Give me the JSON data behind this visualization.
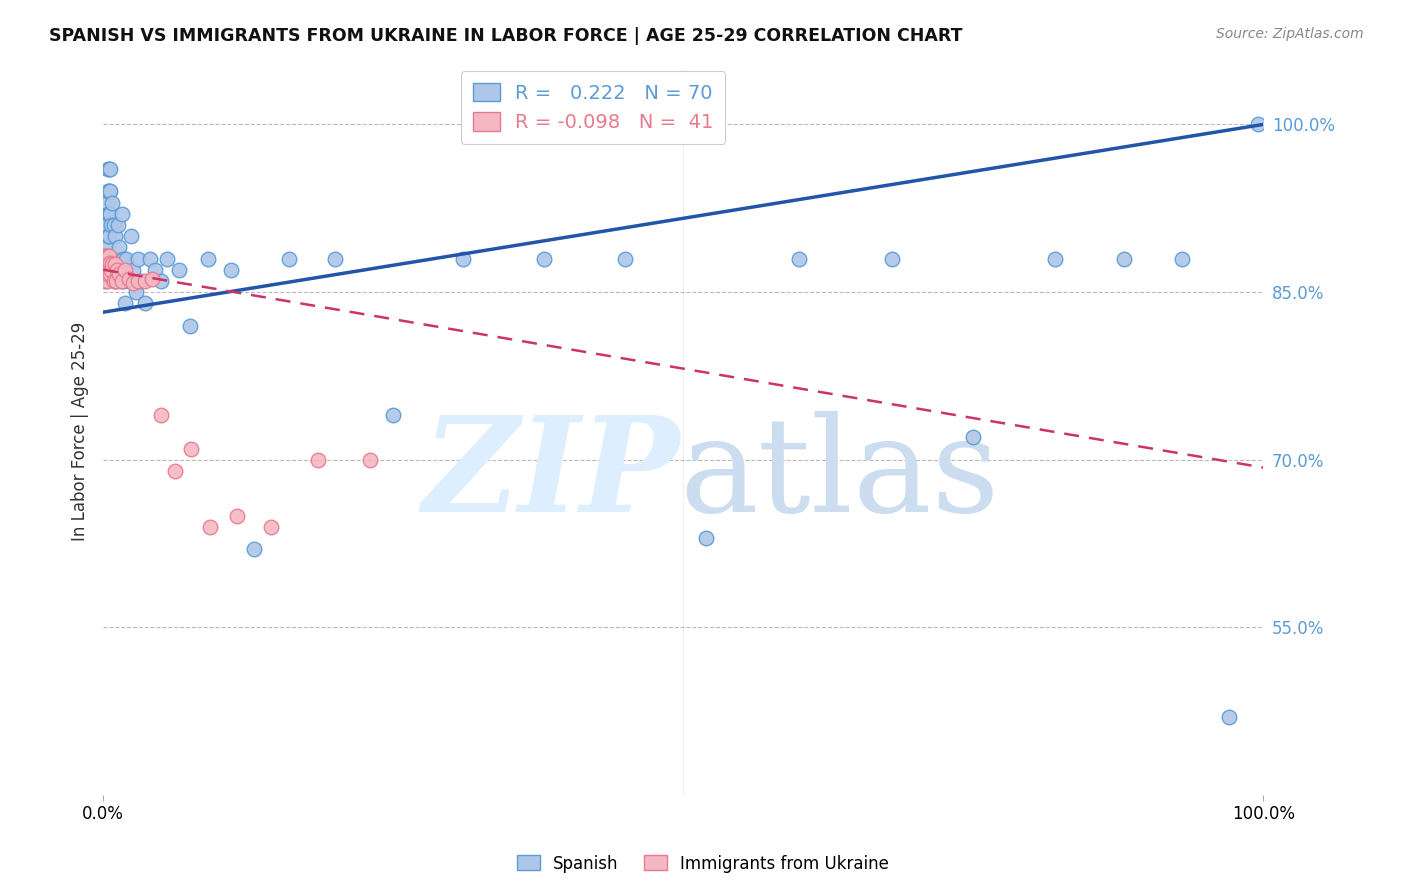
{
  "title": "SPANISH VS IMMIGRANTS FROM UKRAINE IN LABOR FORCE | AGE 25-29 CORRELATION CHART",
  "source": "Source: ZipAtlas.com",
  "ylabel": "In Labor Force | Age 25-29",
  "xrange": [
    0.0,
    1.0
  ],
  "yrange": [
    0.4,
    1.05
  ],
  "spanish_r": 0.222,
  "spanish_n": 70,
  "ukraine_r": -0.098,
  "ukraine_n": 41,
  "blue_color": "#5b9bd5",
  "pink_color": "#e87a8e",
  "blue_fill": "#aec6e8",
  "pink_fill": "#f4b8c2",
  "trend_blue": "#2255aa",
  "trend_pink": "#cc3366",
  "background": "#ffffff",
  "grid_color": "#bbbbbb",
  "ytick_vals": [
    0.55,
    0.7,
    0.85,
    1.0
  ],
  "ytick_labels": [
    "55.0%",
    "70.0%",
    "85.0%",
    "100.0%"
  ],
  "spanish_x": [
    0.001,
    0.002,
    0.002,
    0.002,
    0.003,
    0.003,
    0.003,
    0.003,
    0.004,
    0.004,
    0.004,
    0.004,
    0.005,
    0.005,
    0.005,
    0.005,
    0.005,
    0.006,
    0.006,
    0.006,
    0.006,
    0.007,
    0.007,
    0.008,
    0.008,
    0.009,
    0.009,
    0.01,
    0.01,
    0.011,
    0.012,
    0.013,
    0.014,
    0.015,
    0.016,
    0.017,
    0.018,
    0.019,
    0.02,
    0.022,
    0.024,
    0.026,
    0.028,
    0.03,
    0.033,
    0.036,
    0.04,
    0.045,
    0.05,
    0.055,
    0.065,
    0.075,
    0.09,
    0.11,
    0.13,
    0.16,
    0.2,
    0.25,
    0.31,
    0.38,
    0.45,
    0.52,
    0.6,
    0.68,
    0.75,
    0.82,
    0.88,
    0.93,
    0.97,
    0.995
  ],
  "spanish_y": [
    0.875,
    0.88,
    0.87,
    0.86,
    0.93,
    0.91,
    0.89,
    0.87,
    0.96,
    0.94,
    0.92,
    0.9,
    0.96,
    0.94,
    0.92,
    0.9,
    0.88,
    0.96,
    0.94,
    0.92,
    0.87,
    0.91,
    0.88,
    0.93,
    0.88,
    0.91,
    0.87,
    0.9,
    0.87,
    0.86,
    0.88,
    0.91,
    0.89,
    0.86,
    0.92,
    0.88,
    0.86,
    0.84,
    0.88,
    0.86,
    0.9,
    0.87,
    0.85,
    0.88,
    0.86,
    0.84,
    0.88,
    0.87,
    0.86,
    0.88,
    0.87,
    0.82,
    0.88,
    0.87,
    0.62,
    0.88,
    0.88,
    0.74,
    0.88,
    0.88,
    0.88,
    0.63,
    0.88,
    0.88,
    0.72,
    0.88,
    0.88,
    0.88,
    0.47,
    1.0
  ],
  "ukraine_x": [
    0.001,
    0.001,
    0.001,
    0.002,
    0.002,
    0.002,
    0.002,
    0.003,
    0.003,
    0.003,
    0.003,
    0.003,
    0.004,
    0.004,
    0.004,
    0.005,
    0.005,
    0.006,
    0.006,
    0.007,
    0.008,
    0.009,
    0.01,
    0.011,
    0.012,
    0.014,
    0.016,
    0.019,
    0.022,
    0.026,
    0.03,
    0.036,
    0.042,
    0.05,
    0.062,
    0.076,
    0.092,
    0.115,
    0.145,
    0.185,
    0.23
  ],
  "ukraine_y": [
    0.882,
    0.876,
    0.87,
    0.882,
    0.876,
    0.871,
    0.866,
    0.882,
    0.876,
    0.87,
    0.865,
    0.86,
    0.882,
    0.876,
    0.866,
    0.882,
    0.87,
    0.876,
    0.866,
    0.87,
    0.875,
    0.86,
    0.875,
    0.86,
    0.87,
    0.866,
    0.86,
    0.87,
    0.862,
    0.858,
    0.86,
    0.86,
    0.862,
    0.74,
    0.69,
    0.71,
    0.64,
    0.65,
    0.64,
    0.7,
    0.7
  ],
  "legend_blue_label": "Spanish",
  "legend_pink_label": "Immigrants from Ukraine",
  "blue_trend_start_y": 0.832,
  "blue_trend_end_y": 1.0,
  "pink_trend_start_y": 0.87,
  "pink_trend_end_y": 0.693
}
